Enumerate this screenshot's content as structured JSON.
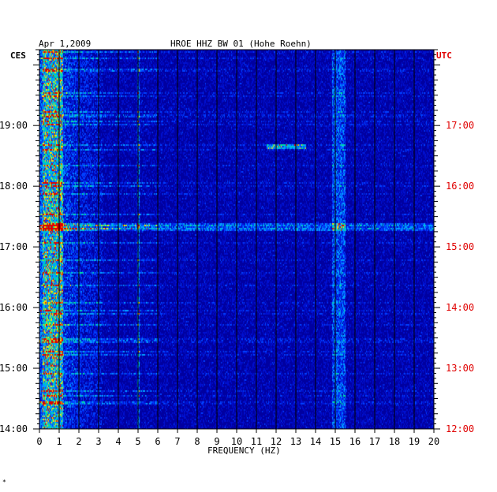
{
  "header": {
    "date": "Apr 1,2009",
    "station": "HROE HHZ BW 01 (Hohe Roehn)"
  },
  "left_zone_label": "CES",
  "right_zone_label": "UTC",
  "footer_mark": "*",
  "colors": {
    "background": "#0000a0",
    "grid": "#000000",
    "utc_labels": "#e00000",
    "text": "#000000"
  },
  "chart_data": {
    "type": "heatmap",
    "title": "HROE HHZ BW 01 (Hohe Roehn)",
    "xlabel": "FREQUENCY (HZ)",
    "xlim": [
      0,
      20
    ],
    "x_ticks": [
      "0",
      "1",
      "2",
      "3",
      "4",
      "5",
      "6",
      "7",
      "8",
      "9",
      "10",
      "11",
      "12",
      "13",
      "14",
      "15",
      "16",
      "17",
      "18",
      "19",
      "20"
    ],
    "left_y_ticks": [
      "14:00",
      "15:00",
      "16:00",
      "17:00",
      "18:00",
      "19:00"
    ],
    "right_y_ticks": [
      "12:00",
      "13:00",
      "14:00",
      "15:00",
      "16:00",
      "17:00"
    ],
    "time_range_local": [
      "14:00",
      "20:15"
    ],
    "features": [
      {
        "name": "microseism band",
        "freq_range_hz": [
          0.2,
          1.2
        ]
      },
      {
        "name": "broadband noise",
        "freq_range_hz": [
          1.2,
          3.2
        ]
      },
      {
        "name": "tonal line",
        "freq_hz": 5.0
      },
      {
        "name": "tonal band",
        "freq_range_hz": [
          14.8,
          15.4
        ]
      },
      {
        "name": "horizontal event",
        "time_local": "17:20"
      },
      {
        "name": "short transient",
        "time_local": "18:40",
        "freq_range_hz": [
          11.5,
          13.5
        ]
      }
    ]
  }
}
